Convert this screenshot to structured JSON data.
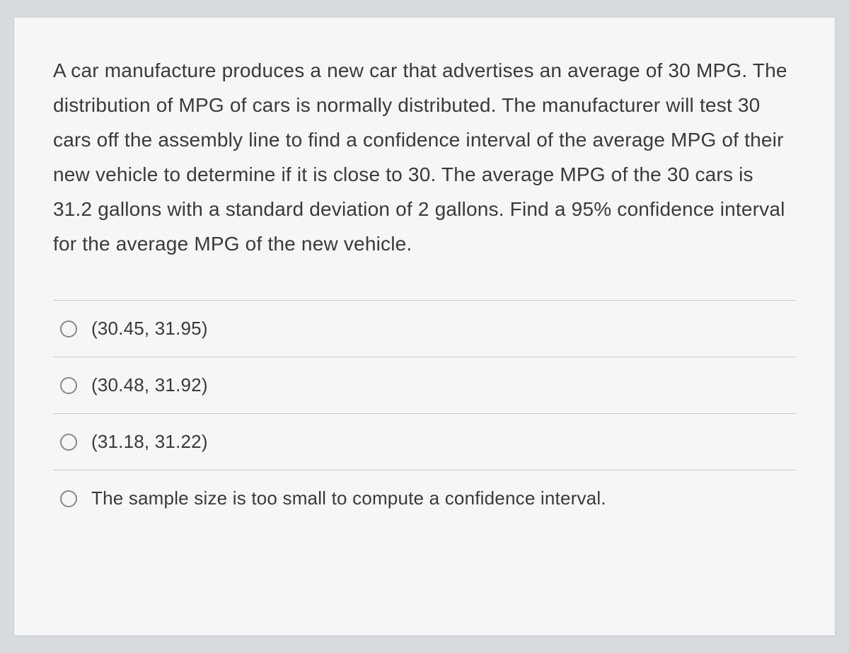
{
  "question": {
    "text": "A car manufacture produces a new car that advertises an average of 30 MPG.  The distribution of MPG of cars is normally distributed.  The manufacturer will test 30 cars off the assembly line to find a confidence interval of the average MPG of their new vehicle to determine if it is close to 30.  The average MPG of the 30 cars is 31.2 gallons with a standard deviation of 2 gallons.  Find a 95% confidence interval for the average MPG of the new vehicle.",
    "required_marker": "*"
  },
  "options": [
    {
      "label": "(30.45, 31.95)"
    },
    {
      "label": "(30.48, 31.92)"
    },
    {
      "label": "(31.18, 31.22)"
    },
    {
      "label": "The sample size is too small to compute a confidence interval."
    }
  ],
  "styles": {
    "background_color": "#d8dbdd",
    "card_background": "#f5f6f6",
    "text_color": "#3a3a3a",
    "divider_color": "#c8cbce",
    "radio_border_color": "#888",
    "question_fontsize": 28,
    "option_fontsize": 26
  }
}
